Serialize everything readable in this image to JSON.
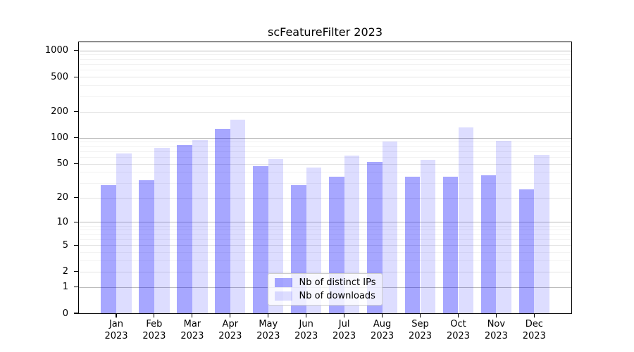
{
  "title": "scFeatureFilter 2023",
  "colors": {
    "distinct_ips": "rgba(0,0,255,0.345)",
    "downloads": "rgba(0,0,255,0.135)",
    "grid_power10": "#bbbbbb",
    "grid_major": "#e3e3e3",
    "grid_minor": "#f2f2f2",
    "axis": "#000000",
    "legend_border": "#cccccc"
  },
  "legend": {
    "items": [
      {
        "label": "Nb of distinct IPs",
        "color_key": "distinct_ips"
      },
      {
        "label": "Nb of downloads",
        "color_key": "downloads"
      }
    ]
  },
  "x_axis": {
    "months": [
      "Jan",
      "Feb",
      "Mar",
      "Apr",
      "May",
      "Jun",
      "Jul",
      "Aug",
      "Sep",
      "Oct",
      "Nov",
      "Dec"
    ],
    "year": "2023"
  },
  "y_axis": {
    "ticks": [
      0,
      1,
      2,
      5,
      10,
      20,
      50,
      100,
      200,
      500,
      1000
    ]
  },
  "chart_data": {
    "type": "bar",
    "title": "scFeatureFilter 2023",
    "categories": [
      "Jan 2023",
      "Feb 2023",
      "Mar 2023",
      "Apr 2023",
      "May 2023",
      "Jun 2023",
      "Jul 2023",
      "Aug 2023",
      "Sep 2023",
      "Oct 2023",
      "Nov 2023",
      "Dec 2023"
    ],
    "series": [
      {
        "name": "Nb of distinct IPs",
        "values": [
          28,
          32,
          83,
          127,
          47,
          28,
          35,
          53,
          35,
          35,
          37,
          25
        ]
      },
      {
        "name": "Nb of downloads",
        "values": [
          66,
          77,
          94,
          161,
          57,
          45,
          62,
          91,
          56,
          131,
          93,
          63
        ]
      }
    ],
    "yscale": "log1p",
    "ylim": [
      0,
      1234
    ],
    "yticks": [
      0,
      1,
      2,
      5,
      10,
      20,
      50,
      100,
      200,
      500,
      1000
    ],
    "grid": true,
    "legend_position": "lower center"
  }
}
